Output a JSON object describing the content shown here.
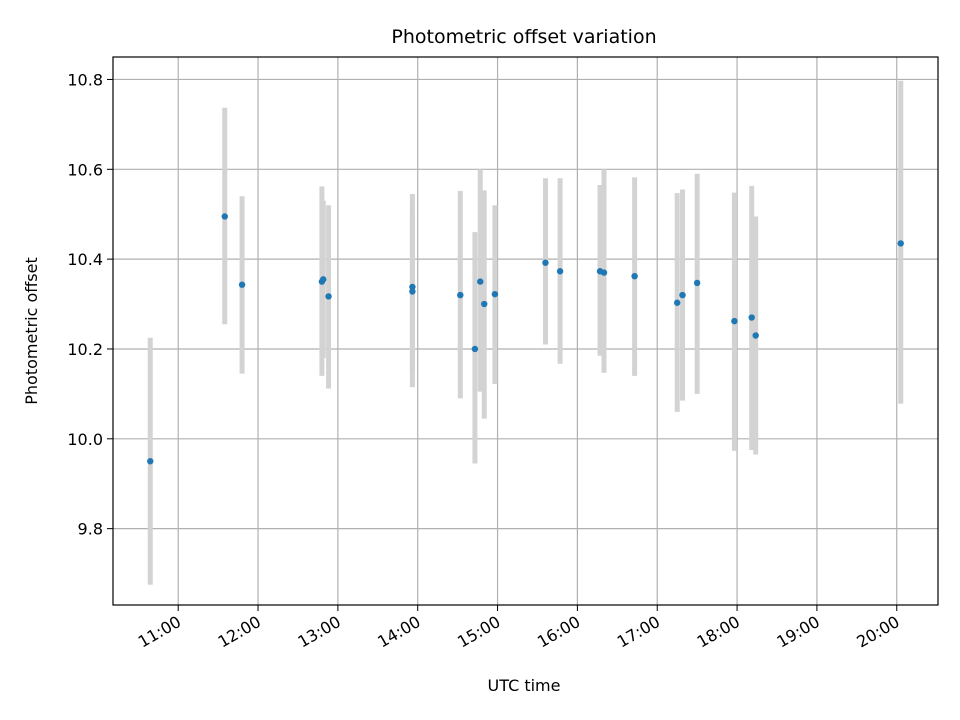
{
  "chart_data": {
    "type": "scatter",
    "title": "Photometric offset variation",
    "xlabel": "UTC time",
    "ylabel": "Photometric offset",
    "xlim": [
      "10:11",
      "20:31"
    ],
    "ylim": [
      9.63,
      10.85
    ],
    "xticks": [
      "11:00",
      "12:00",
      "13:00",
      "14:00",
      "15:00",
      "16:00",
      "17:00",
      "18:00",
      "19:00",
      "20:00"
    ],
    "yticks": [
      "9.8",
      "10.0",
      "10.2",
      "10.4",
      "10.6",
      "10.8"
    ],
    "grid": true,
    "series": [
      {
        "point_color": "#1f77b4",
        "errorbar_color": "#d3d3d3",
        "points": [
          {
            "x": "10:39",
            "y": 9.95,
            "ylow": 9.675,
            "yhigh": 10.225
          },
          {
            "x": "11:35",
            "y": 10.495,
            "ylow": 10.255,
            "yhigh": 10.737
          },
          {
            "x": "11:48",
            "y": 10.343,
            "ylow": 10.145,
            "yhigh": 10.54
          },
          {
            "x": "12:48",
            "y": 10.35,
            "ylow": 10.14,
            "yhigh": 10.562
          },
          {
            "x": "12:49",
            "y": 10.355,
            "ylow": 10.18,
            "yhigh": 10.53
          },
          {
            "x": "12:53",
            "y": 10.317,
            "ylow": 10.112,
            "yhigh": 10.52
          },
          {
            "x": "13:56",
            "y": 10.338,
            "ylow": 10.115,
            "yhigh": 10.545
          },
          {
            "x": "13:56",
            "y": 10.328,
            "ylow": 10.15,
            "yhigh": 10.5
          },
          {
            "x": "14:32",
            "y": 10.32,
            "ylow": 10.09,
            "yhigh": 10.552
          },
          {
            "x": "14:43",
            "y": 10.2,
            "ylow": 9.945,
            "yhigh": 10.46
          },
          {
            "x": "14:47",
            "y": 10.35,
            "ylow": 10.105,
            "yhigh": 10.6
          },
          {
            "x": "14:50",
            "y": 10.3,
            "ylow": 10.045,
            "yhigh": 10.553
          },
          {
            "x": "14:58",
            "y": 10.322,
            "ylow": 10.122,
            "yhigh": 10.52
          },
          {
            "x": "15:36",
            "y": 10.392,
            "ylow": 10.21,
            "yhigh": 10.58
          },
          {
            "x": "15:47",
            "y": 10.373,
            "ylow": 10.167,
            "yhigh": 10.58
          },
          {
            "x": "16:17",
            "y": 10.373,
            "ylow": 10.185,
            "yhigh": 10.565
          },
          {
            "x": "16:20",
            "y": 10.37,
            "ylow": 10.147,
            "yhigh": 10.6
          },
          {
            "x": "16:43",
            "y": 10.362,
            "ylow": 10.14,
            "yhigh": 10.582
          },
          {
            "x": "17:15",
            "y": 10.303,
            "ylow": 10.06,
            "yhigh": 10.547
          },
          {
            "x": "17:19",
            "y": 10.32,
            "ylow": 10.085,
            "yhigh": 10.555
          },
          {
            "x": "17:30",
            "y": 10.347,
            "ylow": 10.1,
            "yhigh": 10.59
          },
          {
            "x": "17:58",
            "y": 10.262,
            "ylow": 9.973,
            "yhigh": 10.548
          },
          {
            "x": "18:11",
            "y": 10.27,
            "ylow": 9.975,
            "yhigh": 10.563
          },
          {
            "x": "18:14",
            "y": 10.23,
            "ylow": 9.965,
            "yhigh": 10.495
          },
          {
            "x": "20:03",
            "y": 10.435,
            "ylow": 10.078,
            "yhigh": 10.797
          }
        ]
      }
    ]
  }
}
